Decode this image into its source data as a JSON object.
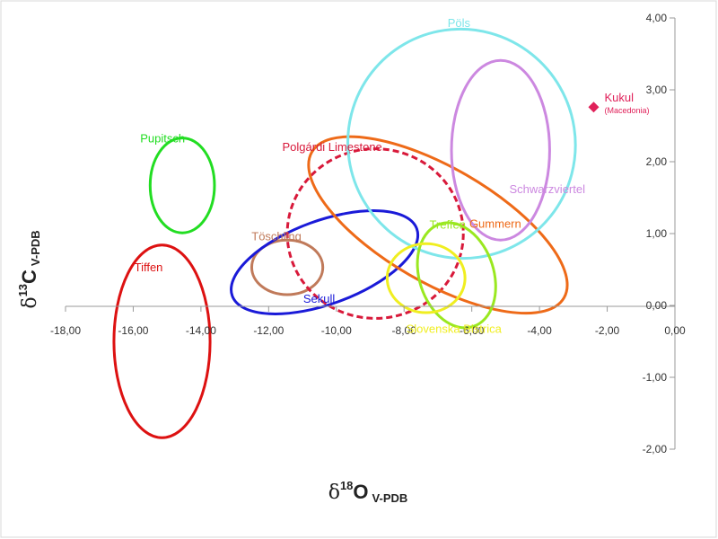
{
  "chart_data": {
    "type": "scatter",
    "title": "",
    "xlabel": {
      "delta": "δ",
      "sup": "18",
      "main": "O",
      "sub": "V-PDB"
    },
    "ylabel": {
      "delta": "δ",
      "sup": "13",
      "main": "C",
      "sub": "V-PDB"
    },
    "xlim": [
      -18,
      0
    ],
    "ylim": [
      -2,
      4
    ],
    "x_ticks": [
      "-18,00",
      "-16,00",
      "-14,00",
      "-12,00",
      "-10,00",
      "-8,00",
      "-6,00",
      "-4,00",
      "-2,00",
      "0,00"
    ],
    "y_ticks": [
      "-2,00",
      "-1,00",
      "0,00",
      "1,00",
      "2,00",
      "3,00",
      "4,00"
    ],
    "grid": false,
    "points": [
      {
        "name": "Kukul",
        "note": "(Macedonia)",
        "x": -2.4,
        "y": 2.76,
        "color": "#e0215a",
        "marker": "diamond"
      }
    ],
    "fields": [
      {
        "name": "Pupitsch",
        "cx": -14.55,
        "cy": 1.67,
        "rx": 0.95,
        "ry": 0.66,
        "rot": 0,
        "color": "#22dd22",
        "dashed": false
      },
      {
        "name": "Tiffen",
        "cx": -15.15,
        "cy": -0.5,
        "rx": 1.42,
        "ry": 1.34,
        "rot": 0,
        "color": "#dd1111",
        "dashed": false
      },
      {
        "name": "Töschling",
        "cx": -11.45,
        "cy": 0.53,
        "rx": 1.05,
        "ry": 0.38,
        "rot": 0,
        "color": "#c07a5a",
        "dashed": false
      },
      {
        "name": "Sekull",
        "cx": -10.35,
        "cy": 0.6,
        "rx": 2.9,
        "ry": 0.58,
        "rot": -20,
        "color": "#1a1ad8",
        "dashed": false
      },
      {
        "name": "Polgárdi Limestone",
        "cx": -8.85,
        "cy": 1.0,
        "rx": 2.6,
        "ry": 1.18,
        "rot": 0,
        "color": "#d8193a",
        "dashed": true
      },
      {
        "name": "Gummern",
        "cx": -7.0,
        "cy": 1.12,
        "rx": 4.3,
        "ry": 0.8,
        "rot": 30,
        "color": "#ee6a18",
        "dashed": false
      },
      {
        "name": "Pöls",
        "cx": -6.3,
        "cy": 2.25,
        "rx": 3.35,
        "ry": 1.6,
        "rot": -30,
        "color": "#7ee6ea",
        "dashed": false
      },
      {
        "name": "Schwarzviertel",
        "cx": -5.15,
        "cy": 2.16,
        "rx": 1.45,
        "ry": 1.25,
        "rot": 0,
        "color": "#cc88e0",
        "dashed": false
      },
      {
        "name": "Treffen",
        "cx": -6.45,
        "cy": 0.42,
        "rx": 1.1,
        "ry": 0.75,
        "rot": -18,
        "color": "#9ae820",
        "dashed": false
      },
      {
        "name": "Slovenska Bistrica",
        "cx": -7.35,
        "cy": 0.38,
        "rx": 1.15,
        "ry": 0.48,
        "rot": 0,
        "color": "#f0ee20",
        "dashed": false
      }
    ]
  }
}
